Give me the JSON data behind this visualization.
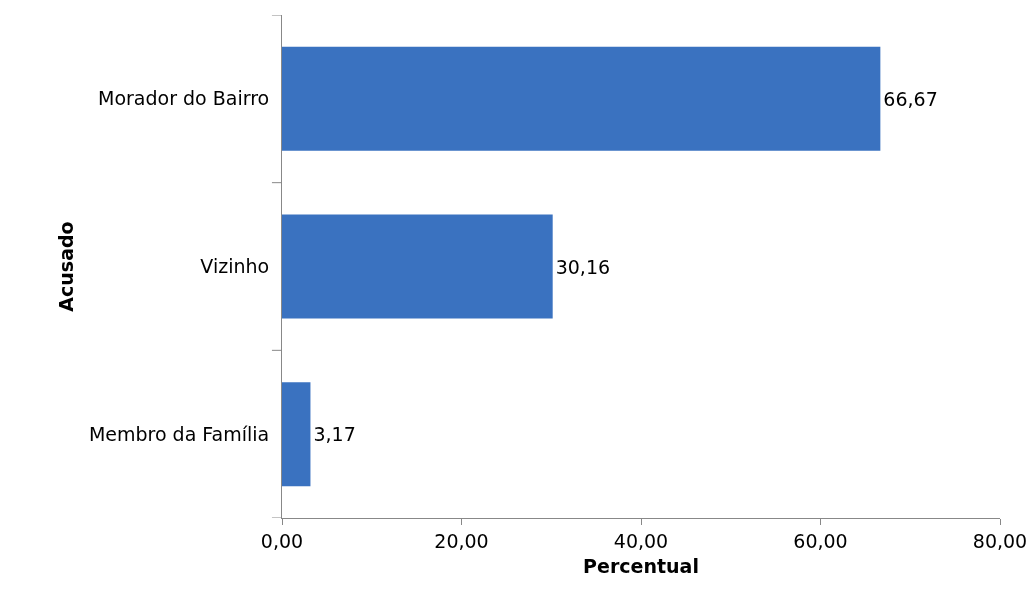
{
  "chart_data": {
    "type": "bar",
    "orientation": "horizontal",
    "xlabel": "Percentual",
    "ylabel": "Acusado",
    "categories": [
      "Morador do Bairro",
      "Vizinho",
      "Membro da Família"
    ],
    "values": [
      66.67,
      30.16,
      3.17
    ],
    "value_labels": [
      "66,67",
      "30,16",
      "3,17"
    ],
    "color": "#3a72c0",
    "xlim": [
      0,
      80
    ],
    "xticks": [
      {
        "value": 0,
        "label": "0,00"
      },
      {
        "value": 20,
        "label": "20,00"
      },
      {
        "value": 40,
        "label": "40,00"
      },
      {
        "value": 60,
        "label": "60,00"
      },
      {
        "value": 80,
        "label": "80,00"
      }
    ]
  }
}
